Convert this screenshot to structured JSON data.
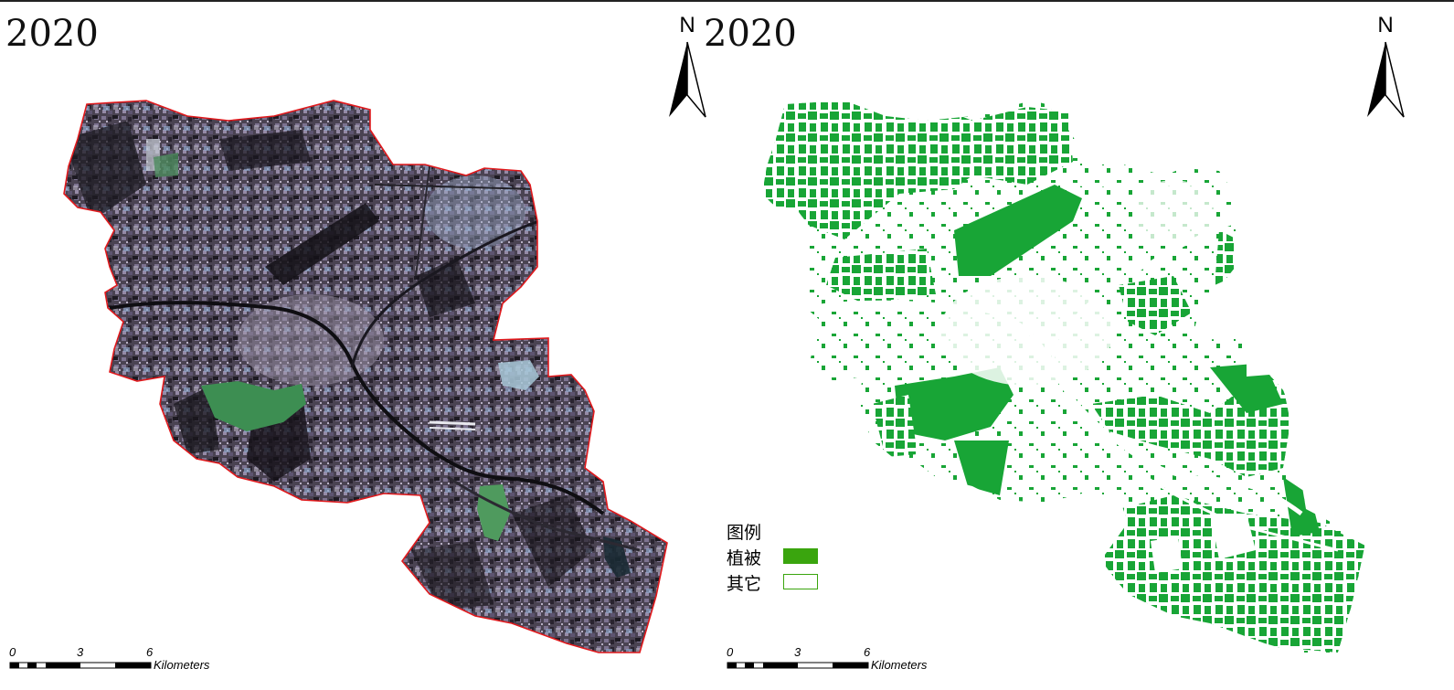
{
  "panels": [
    {
      "year": "2020",
      "north_label": "N",
      "scale": {
        "ticks": [
          "0",
          "3",
          "6"
        ],
        "unit": "Kilometers"
      },
      "kind": "true-color satellite image",
      "boundary_color": "#e0191c"
    },
    {
      "year": "2020",
      "north_label": "N",
      "scale": {
        "ticks": [
          "0",
          "3",
          "6"
        ],
        "unit": "Kilometers"
      },
      "kind": "vegetation classification"
    }
  ],
  "legend": {
    "title": "图例",
    "items": [
      {
        "label": "植被",
        "color": "#3aa50e"
      },
      {
        "label": "其它",
        "color": "#ffffff"
      }
    ]
  },
  "colors": {
    "vegetation": "#18a536",
    "imagery_dark": "#2b2630",
    "imagery_mid": "#6b6177",
    "water_green": "#3f8f55"
  }
}
